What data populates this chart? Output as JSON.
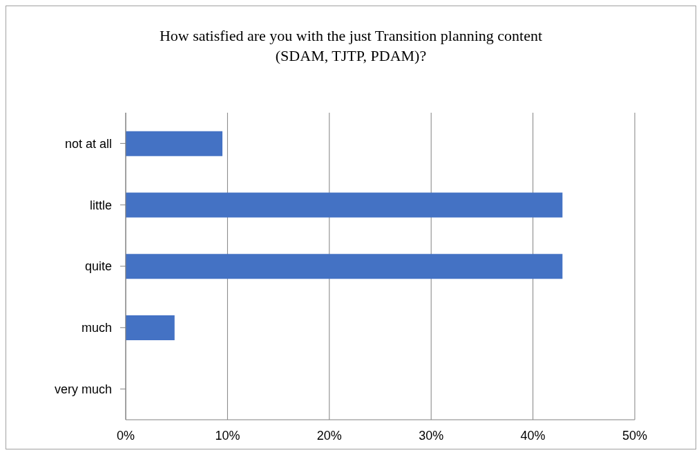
{
  "chart_data": {
    "type": "bar",
    "orientation": "horizontal",
    "title": "How satisfied are you with the just Transition planning content\n(SDAM, TJTP, PDAM)?",
    "categories": [
      "not at all",
      "little",
      "quite",
      "much",
      "very much"
    ],
    "values": [
      9.5,
      42.9,
      42.9,
      4.8,
      0
    ],
    "color": "#4472c4",
    "xlim": [
      0,
      50
    ],
    "xticks": [
      {
        "value": 0,
        "label": "0%"
      },
      {
        "value": 10,
        "label": "10%"
      },
      {
        "value": 20,
        "label": "20%"
      },
      {
        "value": 30,
        "label": "30%"
      },
      {
        "value": 40,
        "label": "40%"
      },
      {
        "value": 50,
        "label": "50%"
      }
    ],
    "grid": "x",
    "legend": false
  }
}
